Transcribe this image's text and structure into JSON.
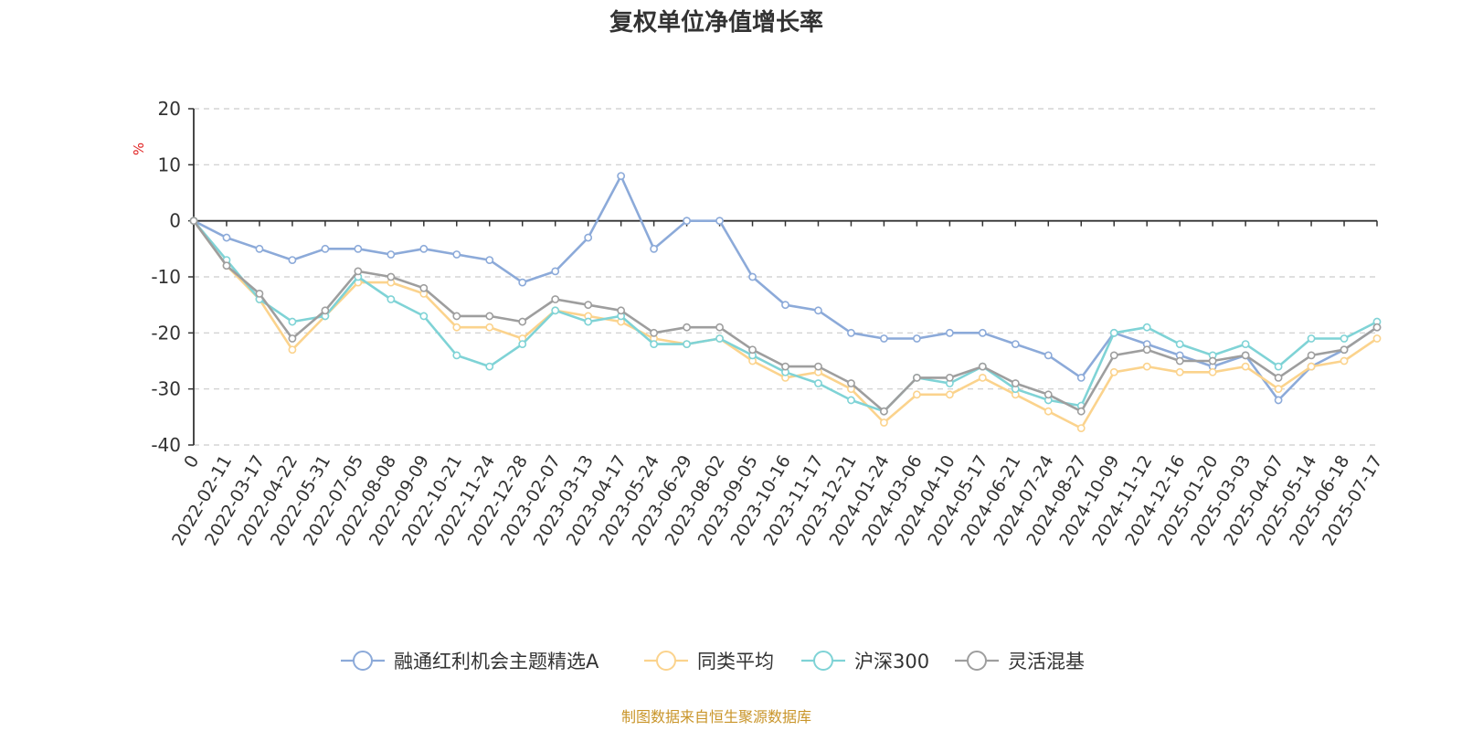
{
  "chart_data": {
    "type": "line",
    "title": "复权单位净值增长率",
    "ylabel": "%",
    "ylim": [
      -40,
      20
    ],
    "yticks": [
      20,
      10,
      0,
      -10,
      -20,
      -30,
      -40
    ],
    "grid": true,
    "legend_position": "bottom",
    "source": "制图数据来自恒生聚源数据库",
    "x": [
      "0",
      "2022-02-11",
      "2022-03-17",
      "2022-04-22",
      "2022-05-31",
      "2022-07-05",
      "2022-08-08",
      "2022-09-09",
      "2022-10-21",
      "2022-11-24",
      "2022-12-28",
      "2023-02-07",
      "2023-03-13",
      "2023-04-17",
      "2023-05-24",
      "2023-06-29",
      "2023-08-02",
      "2023-09-05",
      "2023-10-16",
      "2023-11-17",
      "2023-12-21",
      "2024-01-24",
      "2024-03-06",
      "2024-04-10",
      "2024-05-17",
      "2024-06-21",
      "2024-07-24",
      "2024-08-27",
      "2024-10-09",
      "2024-11-12",
      "2024-12-16",
      "2025-01-20",
      "2025-03-03",
      "2025-04-07",
      "2025-05-14",
      "2025-06-18",
      "2025-07-17"
    ],
    "series": [
      {
        "name": "融通红利机会主题精选A",
        "color": "#8caad9",
        "values": [
          0,
          -3,
          -5,
          -7,
          -5,
          -5,
          -6,
          -5,
          -6,
          -7,
          -11,
          -9,
          -3,
          8,
          -5,
          0,
          0,
          -10,
          -15,
          -16,
          -20,
          -21,
          -21,
          -20,
          -20,
          -22,
          -24,
          -28,
          -20,
          -22,
          -24,
          -26,
          -24,
          -32,
          -26,
          -23,
          -19
        ]
      },
      {
        "name": "同类平均",
        "color": "#fbd38d",
        "values": [
          0,
          -8,
          -14,
          -23,
          -17,
          -11,
          -11,
          -13,
          -19,
          -19,
          -21,
          -16,
          -17,
          -18,
          -21,
          -22,
          -21,
          -25,
          -28,
          -27,
          -30,
          -36,
          -31,
          -31,
          -28,
          -31,
          -34,
          -37,
          -27,
          -26,
          -27,
          -27,
          -26,
          -30,
          -26,
          -25,
          -21
        ]
      },
      {
        "name": "沪深300",
        "color": "#7fd3d6",
        "values": [
          0,
          -7,
          -14,
          -18,
          -17,
          -10,
          -14,
          -17,
          -24,
          -26,
          -22,
          -16,
          -18,
          -17,
          -22,
          -22,
          -21,
          -24,
          -27,
          -29,
          -32,
          -34,
          -28,
          -29,
          -26,
          -30,
          -32,
          -33,
          -20,
          -19,
          -22,
          -24,
          -22,
          -26,
          -21,
          -21,
          -18
        ]
      },
      {
        "name": "灵活混基",
        "color": "#9e9e9e",
        "values": [
          0,
          -8,
          -13,
          -21,
          -16,
          -9,
          -10,
          -12,
          -17,
          -17,
          -18,
          -14,
          -15,
          -16,
          -20,
          -19,
          -19,
          -23,
          -26,
          -26,
          -29,
          -34,
          -28,
          -28,
          -26,
          -29,
          -31,
          -34,
          -24,
          -23,
          -25,
          -25,
          -24,
          -28,
          -24,
          -23,
          -19
        ]
      }
    ]
  }
}
